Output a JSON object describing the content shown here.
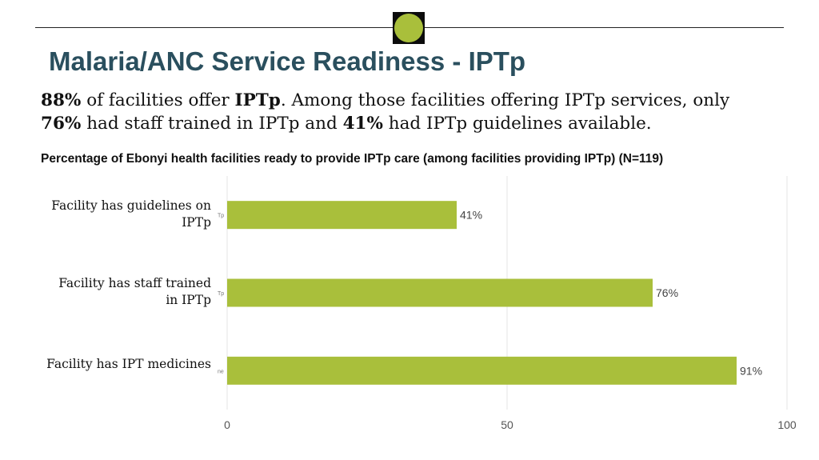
{
  "header": {
    "title": "Malaria/ANC Service Readiness - IPTp",
    "logo_color": "#a9bf3b"
  },
  "summary": {
    "p1_value": "88%",
    "p1_text": " of facilities offer ",
    "p1_term": "IPTp",
    "p1_text2": ". Among those facilities offering IPTp services, only",
    "p2_value": "76%",
    "p2_text": " had staff trained in IPTp and ",
    "p3_value": "41%",
    "p3_text": " had IPTp guidelines available."
  },
  "chart_data": {
    "type": "bar",
    "orientation": "horizontal",
    "title": "Percentage of Ebonyi health facilities ready to provide IPTp care (among facilities providing IPTp) (N=119)",
    "categories": [
      "Facility has guidelines on IPTp",
      "Facility has staff trained in IPTp",
      "Facility has IPT medicines"
    ],
    "category_lines": [
      [
        "Facility has guidelines on",
        "IPTp"
      ],
      [
        "Facility has staff trained",
        "in IPTp"
      ],
      [
        "Facility has IPT medicines"
      ]
    ],
    "inner_labels": [
      "Tp",
      "Tp",
      "ne"
    ],
    "values": [
      41,
      76,
      91
    ],
    "data_labels": [
      "41%",
      "76%",
      "91%"
    ],
    "xlim": [
      0,
      100
    ],
    "xticks": [
      0,
      50,
      100
    ],
    "grid": true,
    "bar_color": "#a9bf3b"
  }
}
